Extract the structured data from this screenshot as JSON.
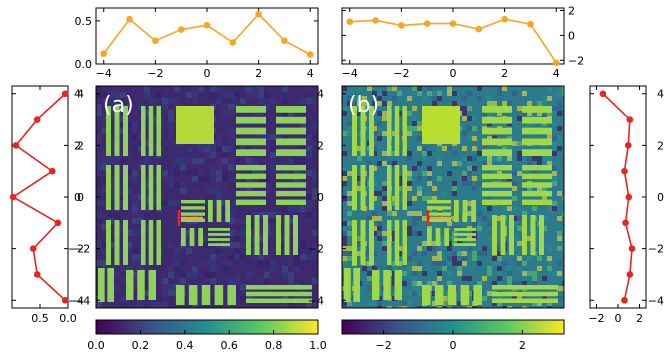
{
  "panel_labels": [
    "(a)",
    "(b)"
  ],
  "colors": {
    "top_profile": "#f5a623",
    "side_profile": "#e8261f",
    "marker_vertical": "#e8261f",
    "marker_horizontal": "#f5a623",
    "colormap": [
      "#440154",
      "#3b528b",
      "#21918c",
      "#5ec962",
      "#fde725"
    ]
  },
  "chart_data": [
    {
      "id": "a-top",
      "type": "line",
      "x": [
        -4,
        -3,
        -2,
        -1,
        0,
        1,
        2,
        3,
        4
      ],
      "y": [
        0.12,
        0.52,
        0.27,
        0.4,
        0.45,
        0.25,
        0.58,
        0.27,
        0.11
      ],
      "xlim": [
        -4.3,
        4.3
      ],
      "ylim": [
        0.0,
        0.65
      ],
      "xticks": [
        -4,
        -2,
        0,
        2,
        4
      ],
      "xtick_labels": [
        "−4",
        "−2",
        "0",
        "2",
        "4"
      ],
      "yticks": [
        0.0,
        0.5
      ],
      "ytick_labels": [
        "0.0",
        "0.5"
      ]
    },
    {
      "id": "b-top",
      "type": "line",
      "x": [
        -4,
        -3,
        -2,
        -1,
        0,
        1,
        2,
        3,
        4
      ],
      "y": [
        1.1,
        1.2,
        0.8,
        0.95,
        0.95,
        0.5,
        1.3,
        0.9,
        -2.2
      ],
      "xlim": [
        -4.3,
        4.3
      ],
      "ylim": [
        -2.3,
        2.2
      ],
      "xticks": [
        -4,
        -2,
        0,
        2,
        4
      ],
      "xtick_labels": [
        "−4",
        "−2",
        "0",
        "2",
        "4"
      ],
      "yticks": [
        -2,
        0,
        2
      ],
      "ytick_labels": [
        "−2",
        "0",
        "2"
      ]
    },
    {
      "id": "a-side",
      "type": "line",
      "orientation": "vertical",
      "y": [
        4,
        3,
        2,
        1,
        0,
        -1,
        -2,
        -3,
        -4
      ],
      "x": [
        0.05,
        0.55,
        0.93,
        0.28,
        0.98,
        0.18,
        0.62,
        0.55,
        0.05
      ],
      "ylim": [
        -4.3,
        4.3
      ],
      "xlim": [
        0.0,
        1.0
      ],
      "xaxis_inverted": true,
      "xticks": [
        0.5,
        0.0
      ],
      "xtick_labels": [
        "0.5",
        "0.0"
      ]
    },
    {
      "id": "b-side",
      "type": "line",
      "orientation": "vertical",
      "y": [
        4,
        3,
        2,
        1,
        0,
        -1,
        -2,
        -3,
        -4
      ],
      "x": [
        -1.4,
        1.1,
        0.95,
        0.6,
        1.0,
        0.7,
        1.3,
        1.1,
        0.6
      ],
      "ylim": [
        -4.3,
        4.3
      ],
      "xlim": [
        -2.6,
        2.6
      ],
      "xticks": [
        -2,
        0,
        2
      ],
      "xtick_labels": [
        "−2",
        "0",
        "2"
      ]
    },
    {
      "id": "a-image",
      "type": "heatmap",
      "yticks": [
        4,
        2,
        0,
        -2,
        -4
      ],
      "ytick_labels": [
        "4",
        "2",
        "0",
        "−2",
        "−4"
      ],
      "colorbar": {
        "range": [
          0.0,
          1.0
        ],
        "ticks": [
          0.0,
          0.2,
          0.4,
          0.6,
          0.8,
          1.0
        ],
        "tick_labels": [
          "0.0",
          "0.2",
          "0.4",
          "0.6",
          "0.8",
          "1.0"
        ]
      }
    },
    {
      "id": "b-image",
      "type": "heatmap",
      "yticks": [
        4,
        2,
        0,
        -2,
        -4
      ],
      "ytick_labels": [
        "4",
        "2",
        "0",
        "−2",
        "−4"
      ],
      "colorbar": {
        "range": [
          -3.2,
          3.2
        ],
        "ticks": [
          -2,
          0,
          2
        ],
        "tick_labels": [
          "−2",
          "0",
          "2"
        ]
      }
    }
  ]
}
